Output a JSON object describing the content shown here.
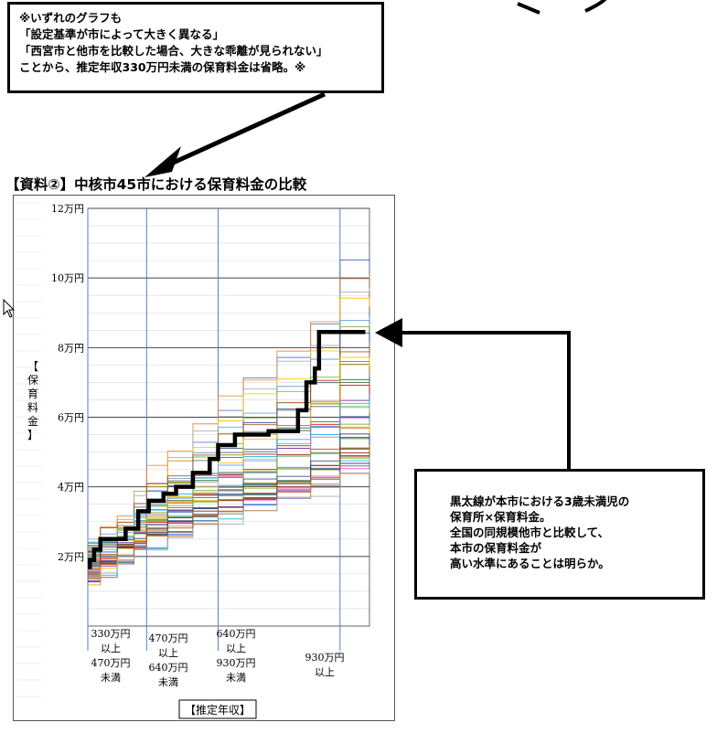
{
  "note": {
    "lines": [
      "※いずれのグラフも",
      "「設定基準が市によって大きく異なる」",
      "「西宮市と他市を比較した場合、大きな乖離が見られない」",
      "ことから、推定年収330万円未満の保育料金は省略。※"
    ]
  },
  "explanation": {
    "lines": [
      "黒太線が本市における3歳未満児の",
      "保育所×保育料金。",
      "全国の同規模他市と比較して、",
      "本市の保育料金が",
      "高い水準にあることは明らか。"
    ]
  },
  "chart_data": {
    "type": "line",
    "title": "【資料②】中核市45市における保育料金の比較",
    "ylabel": "【保育料金】",
    "xlabel": "【推定年収】",
    "ylim": [
      0,
      120000
    ],
    "yticks": [
      {
        "value": 20000,
        "label": "2万円"
      },
      {
        "value": 40000,
        "label": "4万円"
      },
      {
        "value": 60000,
        "label": "6万円"
      },
      {
        "value": 80000,
        "label": "8万円"
      },
      {
        "value": 100000,
        "label": "10万円"
      },
      {
        "value": 120000,
        "label": "12万円"
      }
    ],
    "xlim": [
      330,
      1000
    ],
    "x_bands": [
      {
        "lines": [
          "330万円",
          "以上",
          "470万円",
          "未満"
        ]
      },
      {
        "lines": [
          "470万円",
          "以上",
          "640万円",
          "未満"
        ]
      },
      {
        "lines": [
          "640万円",
          "以上",
          "930万円",
          "未満"
        ]
      },
      {
        "lines": [
          "930万円",
          "以上"
        ]
      }
    ],
    "band_boundaries": [
      330,
      470,
      640,
      930
    ],
    "highlight_series": {
      "x": [
        330,
        335,
        335,
        345,
        345,
        360,
        360,
        420,
        420,
        450,
        450,
        475,
        475,
        510,
        510,
        540,
        540,
        580,
        580,
        620,
        620,
        640,
        640,
        680,
        680,
        760,
        760,
        830,
        830,
        850,
        850,
        870,
        870,
        880,
        880,
        895,
        895,
        990
      ],
      "y": [
        17000,
        17000,
        19000,
        19000,
        22000,
        22000,
        25000,
        25000,
        28000,
        28000,
        33000,
        33000,
        36000,
        36000,
        38000,
        38000,
        40000,
        40000,
        44000,
        44000,
        48000,
        48000,
        52000,
        52000,
        55000,
        55000,
        56000,
        56000,
        62000,
        62000,
        70000,
        70000,
        74000,
        74000,
        84500,
        84500,
        84500,
        84500
      ]
    },
    "other_series_final_values": [
      104000,
      101000,
      96000,
      93000,
      89000,
      86000,
      83000,
      80000,
      76000,
      74000,
      72000,
      70000,
      68000,
      66000,
      64000,
      62000,
      61000,
      60000,
      59000,
      58000,
      57000,
      56000,
      55000,
      54000,
      53000,
      52000,
      51000,
      50000,
      49500,
      49000,
      48500,
      48000,
      47500,
      47000,
      46500,
      46000,
      45500,
      45000,
      44000,
      76000,
      64000,
      58000,
      54000,
      50000
    ],
    "colors": {
      "highlight": "#000000",
      "grid_h": "#444444",
      "grid_v": "#5a7fc6",
      "series_palette": [
        "#4472c4",
        "#ed7d31",
        "#a5a5a5",
        "#ffc000",
        "#5b9bd5",
        "#70ad47",
        "#264478",
        "#9e480e",
        "#636363",
        "#997300",
        "#255e91",
        "#43682b",
        "#c00000",
        "#7030a0",
        "#00b0f0",
        "#92d050",
        "#ff66cc",
        "#8b4513"
      ]
    }
  }
}
